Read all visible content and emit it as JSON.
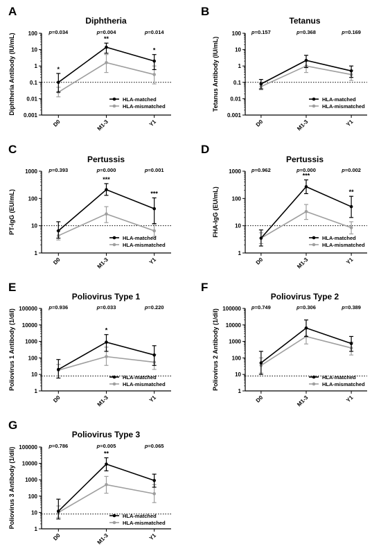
{
  "chart_data": [
    {
      "panel": "A",
      "type": "line",
      "title": "Diphtheria",
      "ylabel": "Diphtheria Antibody (IU/mL)",
      "yscale": "log",
      "ylim": [
        0.001,
        100
      ],
      "yticks": [
        "0.001",
        "0.01",
        "0.1",
        "1",
        "10",
        "100"
      ],
      "categories": [
        "D0",
        "M1-3",
        "Y1"
      ],
      "reference_line": 0.1,
      "p_values": [
        "0.034",
        "0.004",
        "0.014"
      ],
      "significance": [
        "*",
        "**",
        "*"
      ],
      "series": [
        {
          "name": "HLA-matched",
          "color": "#000000",
          "values": [
            0.1,
            14,
            2
          ],
          "err_low": [
            0.025,
            6,
            0.6
          ],
          "err_high": [
            0.35,
            25,
            5
          ]
        },
        {
          "name": "HLA-mismatched",
          "color": "#9e9e9e",
          "values": [
            0.025,
            1.6,
            0.3
          ],
          "err_low": [
            0.013,
            0.4,
            0.08
          ],
          "err_high": [
            0.05,
            5,
            1
          ]
        }
      ],
      "legend_position": "lower-right"
    },
    {
      "panel": "B",
      "type": "line",
      "title": "Tetanus",
      "ylabel": "Tetanus Antibody (IU/mL)",
      "yscale": "log",
      "ylim": [
        0.001,
        100
      ],
      "yticks": [
        "0.001",
        "0.01",
        "0.1",
        "1",
        "10",
        "100"
      ],
      "categories": [
        "D0",
        "M1-3",
        "Y1"
      ],
      "reference_line": 0.1,
      "p_values": [
        "0.157",
        "0.368",
        "0.169"
      ],
      "significance": [
        "",
        "",
        ""
      ],
      "series": [
        {
          "name": "HLA-matched",
          "color": "#000000",
          "values": [
            0.08,
            2.2,
            0.5
          ],
          "err_low": [
            0.04,
            0.8,
            0.2
          ],
          "err_high": [
            0.15,
            4.5,
            1
          ]
        },
        {
          "name": "HLA-mismatched",
          "color": "#9e9e9e",
          "values": [
            0.055,
            1.0,
            0.3
          ],
          "err_low": [
            0.035,
            0.4,
            0.13
          ],
          "err_high": [
            0.09,
            2,
            0.55
          ]
        }
      ],
      "legend_position": "lower-right"
    },
    {
      "panel": "C",
      "type": "line",
      "title": "Pertussis",
      "ylabel": "PT-IgG (EU/mL)",
      "yscale": "log",
      "ylim": [
        1,
        1000
      ],
      "yticks": [
        "1",
        "10",
        "100",
        "1000"
      ],
      "categories": [
        "D0",
        "M1-3",
        "Y1"
      ],
      "reference_line": 10,
      "p_values": [
        "0.393",
        "0.000",
        "0.001"
      ],
      "significance": [
        "",
        "***",
        "***"
      ],
      "series": [
        {
          "name": "HLA-matched",
          "color": "#000000",
          "values": [
            6.5,
            210,
            42
          ],
          "err_low": [
            3.5,
            130,
            12
          ],
          "err_high": [
            14,
            350,
            105
          ]
        },
        {
          "name": "HLA-mismatched",
          "color": "#9e9e9e",
          "values": [
            4.3,
            27,
            6.5
          ],
          "err_low": [
            3,
            13,
            4
          ],
          "err_high": [
            6.5,
            50,
            11
          ]
        }
      ],
      "legend_position": "lower-right"
    },
    {
      "panel": "D",
      "type": "line",
      "title": "Pertussis",
      "ylabel": "FHA-IgG (EU/mL)",
      "yscale": "log",
      "ylim": [
        1,
        1000
      ],
      "yticks": [
        "1",
        "10",
        "100",
        "1000"
      ],
      "categories": [
        "D0",
        "M1-3",
        "Y1"
      ],
      "reference_line": 10,
      "p_values": [
        "0.962",
        "0.000",
        "0.002"
      ],
      "significance": [
        "",
        "***",
        "**"
      ],
      "series": [
        {
          "name": "HLA-matched",
          "color": "#000000",
          "values": [
            3.5,
            270,
            50
          ],
          "err_low": [
            1.8,
            150,
            20
          ],
          "err_high": [
            7,
            480,
            120
          ]
        },
        {
          "name": "HLA-mismatched",
          "color": "#9e9e9e",
          "values": [
            3.5,
            33,
            8.5
          ],
          "err_low": [
            2.2,
            17,
            5
          ],
          "err_high": [
            5.5,
            60,
            14
          ]
        }
      ],
      "legend_position": "lower-right"
    },
    {
      "panel": "E",
      "type": "line",
      "title": "Poliovirus Type 1",
      "ylabel": "Poliovirus 1 Antibody (1/dil)",
      "yscale": "log",
      "ylim": [
        1,
        100000
      ],
      "yticks": [
        "1",
        "10",
        "100",
        "1000",
        "10000",
        "100000"
      ],
      "categories": [
        "D0",
        "M1-3",
        "Y1"
      ],
      "reference_line": 8,
      "p_values": [
        "0.936",
        "0.033",
        "0.220"
      ],
      "significance": [
        "",
        "*",
        ""
      ],
      "series": [
        {
          "name": "HLA-matched",
          "color": "#000000",
          "values": [
            20,
            900,
            150
          ],
          "err_low": [
            6,
            250,
            35
          ],
          "err_high": [
            80,
            2600,
            550
          ]
        },
        {
          "name": "HLA-mismatched",
          "color": "#9e9e9e",
          "values": [
            18,
            120,
            55
          ],
          "err_low": [
            8,
            35,
            20
          ],
          "err_high": [
            40,
            450,
            160
          ]
        }
      ],
      "legend_position": "lower-right"
    },
    {
      "panel": "F",
      "type": "line",
      "title": "Poliovirus Type 2",
      "ylabel": "Poliovirus 2 Antibody (1/dil)",
      "yscale": "log",
      "ylim": [
        1,
        100000
      ],
      "yticks": [
        "1",
        "10",
        "100",
        "1000",
        "10000",
        "100000"
      ],
      "categories": [
        "D0",
        "M1-3",
        "Y1"
      ],
      "reference_line": 8,
      "p_values": [
        "0.749",
        "0.306",
        "0.389"
      ],
      "significance": [
        "",
        "",
        ""
      ],
      "series": [
        {
          "name": "HLA-matched",
          "color": "#000000",
          "values": [
            50,
            6500,
            750
          ],
          "err_low": [
            10,
            2000,
            250
          ],
          "err_high": [
            250,
            20000,
            2000
          ]
        },
        {
          "name": "HLA-mismatched",
          "color": "#9e9e9e",
          "values": [
            35,
            2000,
            400
          ],
          "err_low": [
            12,
            700,
            150
          ],
          "err_high": [
            100,
            6000,
            900
          ]
        }
      ],
      "legend_position": "lower-right"
    },
    {
      "panel": "G",
      "type": "line",
      "title": "Poliovirus Type 3",
      "ylabel": "Poliovirus 3 Antibody (1/dil)",
      "yscale": "log",
      "ylim": [
        1,
        100000
      ],
      "yticks": [
        "1",
        "10",
        "100",
        "1000",
        "10000",
        "100000"
      ],
      "categories": [
        "D0",
        "M1-3",
        "Y1"
      ],
      "reference_line": 8,
      "p_values": [
        "0.786",
        "0.005",
        "0.065"
      ],
      "significance": [
        "",
        "**",
        ""
      ],
      "series": [
        {
          "name": "HLA-matched",
          "color": "#000000",
          "values": [
            12,
            9000,
            900
          ],
          "err_low": [
            4,
            3500,
            350
          ],
          "err_high": [
            65,
            22000,
            2200
          ]
        },
        {
          "name": "HLA-mismatched",
          "color": "#9e9e9e",
          "values": [
            10,
            500,
            140
          ],
          "err_low": [
            5,
            150,
            40
          ],
          "err_high": [
            25,
            1600,
            500
          ]
        }
      ],
      "legend_position": "lower-right"
    }
  ]
}
